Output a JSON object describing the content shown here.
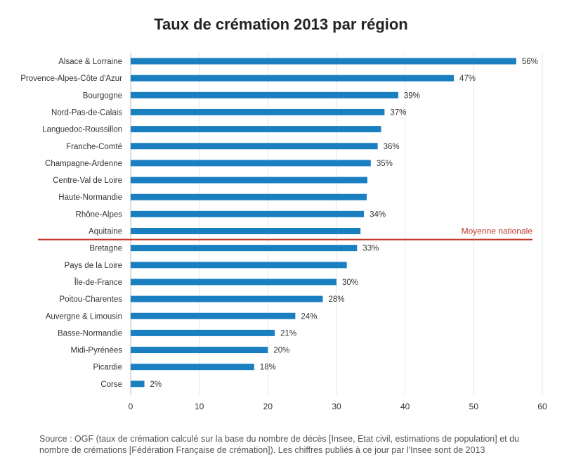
{
  "chart_data": {
    "type": "bar",
    "orientation": "horizontal",
    "title": "Taux de crémation 2013 par région",
    "xlabel": "",
    "ylabel": "",
    "xlim": [
      0,
      60
    ],
    "xticks": [
      "0",
      "10",
      "20",
      "30",
      "40",
      "50",
      "60"
    ],
    "grid": true,
    "categories": [
      "Alsace & Lorraine",
      "Provence-Alpes-Côte d'Azur",
      "Bourgogne",
      "Nord-Pas-de-Calais",
      "Languedoc-Roussillon",
      "Franche-Comté",
      "Champagne-Ardenne",
      "Centre-Val de Loire",
      "Haute-Normandie",
      "Rhône-Alpes",
      "Aquitaine",
      "Bretagne",
      "Pays de la Loire",
      "Île-de-France",
      "Poitou-Charentes",
      "Auvergne & Limousin",
      "Basse-Normandie",
      "Midi-Pyrénées",
      "Picardie",
      "Corse"
    ],
    "values": [
      56.2,
      47.1,
      39.0,
      37.0,
      36.5,
      36.0,
      35.0,
      34.5,
      34.4,
      34.0,
      33.5,
      33.0,
      31.5,
      30.0,
      28.0,
      24.0,
      21.0,
      20.0,
      18.0,
      2.0
    ],
    "data_labels": [
      "56%",
      "47%",
      "39%",
      "37%",
      "",
      "36%",
      "35%",
      "",
      "",
      "34%",
      "",
      "33%",
      "",
      "30%",
      "28%",
      "24%",
      "21%",
      "20%",
      "18%",
      "2%"
    ],
    "bar_color": "#1a7fc1",
    "reference_line": {
      "label": "Moyenne nationale",
      "after_category": "Aquitaine",
      "color": "#c0392b"
    }
  },
  "source_note": "Source : OGF (taux de crémation calculé sur la base du nombre de décès [Insee, Etat civil, estimations de population] et du nombre de crémations [Fédération Française de crémation]). Les chiffres publiés à ce jour par l'Insee sont de 2013"
}
